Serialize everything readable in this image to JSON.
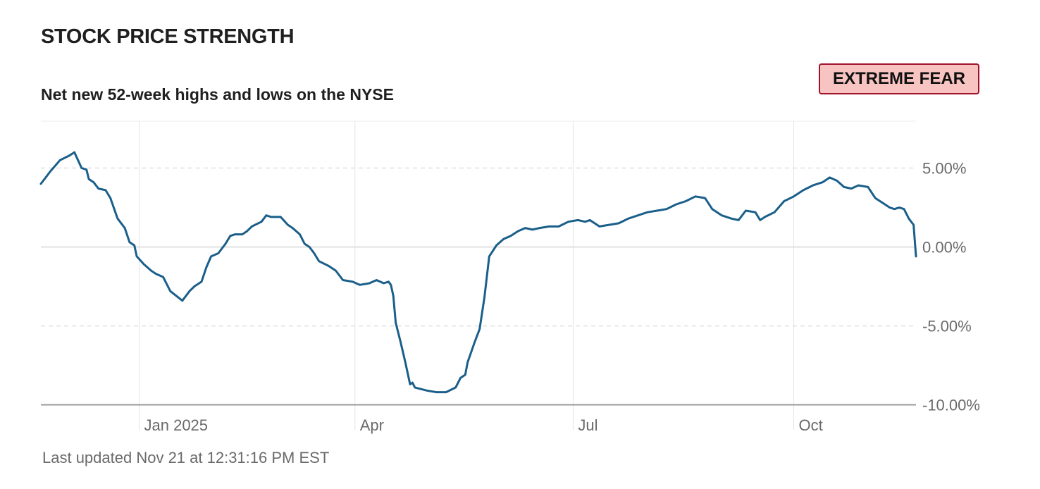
{
  "header": {
    "title": "STOCK PRICE STRENGTH",
    "subtitle": "Net new 52-week highs and lows on the NYSE",
    "rating": "EXTREME FEAR"
  },
  "footer": {
    "updated": "Last updated Nov 21 at 12:31:16 PM EST"
  },
  "colors": {
    "line": "#1a5f8a",
    "badge_bg": "#f7c4c2",
    "badge_border": "#a0122b",
    "grid": "#e4e4e4",
    "axis": "#9a9a9a"
  },
  "chart_data": {
    "type": "line",
    "title": "STOCK PRICE STRENGTH",
    "subtitle": "Net new 52-week highs and lows on the NYSE",
    "x_start": "2024-11-21",
    "x_end": "2025-11-21",
    "x_ticks": [
      {
        "date": "2025-01-01",
        "label": "Jan 2025"
      },
      {
        "date": "2025-04-01",
        "label": "Apr"
      },
      {
        "date": "2025-07-01",
        "label": "Jul"
      },
      {
        "date": "2025-10-01",
        "label": "Oct"
      }
    ],
    "y_ticks": [
      {
        "value": 5,
        "label": "5.00%"
      },
      {
        "value": 0,
        "label": "0.00%"
      },
      {
        "value": -5,
        "label": "-5.00%"
      },
      {
        "value": -10,
        "label": "-10.00%"
      }
    ],
    "ylim": [
      -10,
      8
    ],
    "y_unit": "%",
    "series": [
      {
        "points": [
          [
            "2024-11-21",
            4.0
          ],
          [
            "2024-11-25",
            4.8
          ],
          [
            "2024-11-29",
            5.5
          ],
          [
            "2024-12-03",
            5.8
          ],
          [
            "2024-12-05",
            6.0
          ],
          [
            "2024-12-08",
            5.0
          ],
          [
            "2024-12-10",
            4.9
          ],
          [
            "2024-12-11",
            4.3
          ],
          [
            "2024-12-13",
            4.1
          ],
          [
            "2024-12-15",
            3.7
          ],
          [
            "2024-12-18",
            3.6
          ],
          [
            "2024-12-20",
            3.1
          ],
          [
            "2024-12-23",
            1.8
          ],
          [
            "2024-12-26",
            1.2
          ],
          [
            "2024-12-28",
            0.3
          ],
          [
            "2024-12-30",
            0.1
          ],
          [
            "2024-12-31",
            -0.6
          ],
          [
            "2025-01-03",
            -1.1
          ],
          [
            "2025-01-06",
            -1.5
          ],
          [
            "2025-01-08",
            -1.7
          ],
          [
            "2025-01-11",
            -1.9
          ],
          [
            "2025-01-14",
            -2.8
          ],
          [
            "2025-01-19",
            -3.4
          ],
          [
            "2025-01-22",
            -2.8
          ],
          [
            "2025-01-24",
            -2.5
          ],
          [
            "2025-01-27",
            -2.2
          ],
          [
            "2025-01-29",
            -1.3
          ],
          [
            "2025-01-31",
            -0.6
          ],
          [
            "2025-02-03",
            -0.4
          ],
          [
            "2025-02-06",
            0.2
          ],
          [
            "2025-02-08",
            0.7
          ],
          [
            "2025-02-10",
            0.8
          ],
          [
            "2025-02-13",
            0.8
          ],
          [
            "2025-02-15",
            1.0
          ],
          [
            "2025-02-17",
            1.3
          ],
          [
            "2025-02-21",
            1.6
          ],
          [
            "2025-02-23",
            2.0
          ],
          [
            "2025-02-25",
            1.9
          ],
          [
            "2025-03-01",
            1.9
          ],
          [
            "2025-03-04",
            1.4
          ],
          [
            "2025-03-06",
            1.2
          ],
          [
            "2025-03-09",
            0.8
          ],
          [
            "2025-03-11",
            0.2
          ],
          [
            "2025-03-13",
            0.0
          ],
          [
            "2025-03-15",
            -0.4
          ],
          [
            "2025-03-17",
            -0.9
          ],
          [
            "2025-03-21",
            -1.2
          ],
          [
            "2025-03-24",
            -1.5
          ],
          [
            "2025-03-27",
            -2.1
          ],
          [
            "2025-03-31",
            -2.2
          ],
          [
            "2025-04-03",
            -2.4
          ],
          [
            "2025-04-07",
            -2.3
          ],
          [
            "2025-04-10",
            -2.1
          ],
          [
            "2025-04-13",
            -2.3
          ],
          [
            "2025-04-15",
            -2.2
          ],
          [
            "2025-04-16",
            -2.4
          ],
          [
            "2025-04-17",
            -3.1
          ],
          [
            "2025-04-18",
            -4.8
          ],
          [
            "2025-04-20",
            -6.0
          ],
          [
            "2025-04-22",
            -7.3
          ],
          [
            "2025-04-24",
            -8.7
          ],
          [
            "2025-04-25",
            -8.6
          ],
          [
            "2025-04-26",
            -8.9
          ],
          [
            "2025-05-01",
            -9.1
          ],
          [
            "2025-05-05",
            -9.2
          ],
          [
            "2025-05-09",
            -9.2
          ],
          [
            "2025-05-13",
            -8.9
          ],
          [
            "2025-05-15",
            -8.3
          ],
          [
            "2025-05-17",
            -8.1
          ],
          [
            "2025-05-18",
            -7.3
          ],
          [
            "2025-05-21",
            -6.0
          ],
          [
            "2025-05-23",
            -5.2
          ],
          [
            "2025-05-25",
            -3.2
          ],
          [
            "2025-05-27",
            -0.6
          ],
          [
            "2025-05-30",
            0.1
          ],
          [
            "2025-06-02",
            0.5
          ],
          [
            "2025-06-05",
            0.7
          ],
          [
            "2025-06-08",
            1.0
          ],
          [
            "2025-06-11",
            1.2
          ],
          [
            "2025-06-14",
            1.1
          ],
          [
            "2025-06-17",
            1.2
          ],
          [
            "2025-06-21",
            1.3
          ],
          [
            "2025-06-25",
            1.3
          ],
          [
            "2025-06-29",
            1.6
          ],
          [
            "2025-07-03",
            1.7
          ],
          [
            "2025-07-06",
            1.6
          ],
          [
            "2025-07-08",
            1.7
          ],
          [
            "2025-07-12",
            1.3
          ],
          [
            "2025-07-16",
            1.4
          ],
          [
            "2025-07-20",
            1.5
          ],
          [
            "2025-07-24",
            1.8
          ],
          [
            "2025-07-28",
            2.0
          ],
          [
            "2025-08-01",
            2.2
          ],
          [
            "2025-08-05",
            2.3
          ],
          [
            "2025-08-09",
            2.4
          ],
          [
            "2025-08-13",
            2.7
          ],
          [
            "2025-08-17",
            2.9
          ],
          [
            "2025-08-21",
            3.2
          ],
          [
            "2025-08-25",
            3.1
          ],
          [
            "2025-08-28",
            2.4
          ],
          [
            "2025-09-01",
            2.0
          ],
          [
            "2025-09-05",
            1.8
          ],
          [
            "2025-09-08",
            1.7
          ],
          [
            "2025-09-11",
            2.3
          ],
          [
            "2025-09-15",
            2.2
          ],
          [
            "2025-09-17",
            1.7
          ],
          [
            "2025-09-19",
            1.9
          ],
          [
            "2025-09-23",
            2.2
          ],
          [
            "2025-09-27",
            2.9
          ],
          [
            "2025-10-01",
            3.2
          ],
          [
            "2025-10-05",
            3.6
          ],
          [
            "2025-10-09",
            3.9
          ],
          [
            "2025-10-13",
            4.1
          ],
          [
            "2025-10-16",
            4.4
          ],
          [
            "2025-10-19",
            4.2
          ],
          [
            "2025-10-22",
            3.8
          ],
          [
            "2025-10-25",
            3.7
          ],
          [
            "2025-10-28",
            3.9
          ],
          [
            "2025-11-01",
            3.8
          ],
          [
            "2025-11-04",
            3.1
          ],
          [
            "2025-11-07",
            2.8
          ],
          [
            "2025-11-10",
            2.5
          ],
          [
            "2025-11-12",
            2.4
          ],
          [
            "2025-11-14",
            2.5
          ],
          [
            "2025-11-16",
            2.4
          ],
          [
            "2025-11-18",
            1.8
          ],
          [
            "2025-11-20",
            1.4
          ],
          [
            "2025-11-21",
            -0.6
          ]
        ]
      }
    ]
  }
}
